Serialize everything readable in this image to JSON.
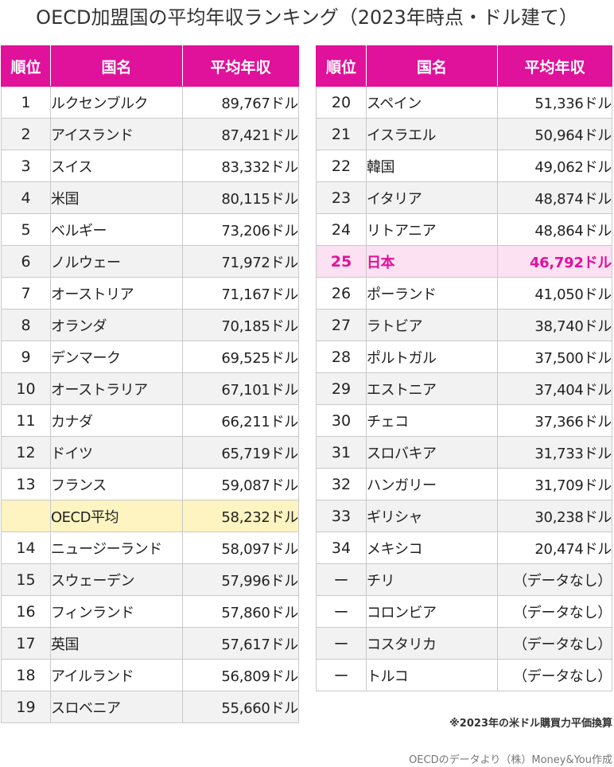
{
  "title": "OECD加盟国の平均年収ランキング（2023年時点・ドル建て）",
  "headers": {
    "rank": "順位",
    "country": "国名",
    "salary": "平均年収"
  },
  "left_rows": [
    {
      "rank": "1",
      "country": "ルクセンブルク",
      "salary": "89,767ドル"
    },
    {
      "rank": "2",
      "country": "アイスランド",
      "salary": "87,421ドル"
    },
    {
      "rank": "3",
      "country": "スイス",
      "salary": "83,332ドル"
    },
    {
      "rank": "4",
      "country": "米国",
      "salary": "80,115ドル"
    },
    {
      "rank": "5",
      "country": "ベルギー",
      "salary": "73,206ドル"
    },
    {
      "rank": "6",
      "country": "ノルウェー",
      "salary": "71,972ドル"
    },
    {
      "rank": "7",
      "country": "オーストリア",
      "salary": "71,167ドル"
    },
    {
      "rank": "8",
      "country": "オランダ",
      "salary": "70,185ドル"
    },
    {
      "rank": "9",
      "country": "デンマーク",
      "salary": "69,525ドル"
    },
    {
      "rank": "10",
      "country": "オーストラリア",
      "salary": "67,101ドル"
    },
    {
      "rank": "11",
      "country": "カナダ",
      "salary": "66,211ドル"
    },
    {
      "rank": "12",
      "country": "ドイツ",
      "salary": "65,719ドル"
    },
    {
      "rank": "13",
      "country": "フランス",
      "salary": "59,087ドル"
    },
    {
      "rank": "",
      "country": "OECD平均",
      "salary": "58,232ドル"
    },
    {
      "rank": "14",
      "country": "ニュージーランド",
      "salary": "58,097ドル"
    },
    {
      "rank": "15",
      "country": "スウェーデン",
      "salary": "57,996ドル"
    },
    {
      "rank": "16",
      "country": "フィンランド",
      "salary": "57,860ドル"
    },
    {
      "rank": "17",
      "country": "英国",
      "salary": "57,617ドル"
    },
    {
      "rank": "18",
      "country": "アイルランド",
      "salary": "56,809ドル"
    },
    {
      "rank": "19",
      "country": "スロベニア",
      "salary": "55,660ドル"
    }
  ],
  "right_rows": [
    {
      "rank": "20",
      "country": "スペイン",
      "salary": "51,336ドル"
    },
    {
      "rank": "21",
      "country": "イスラエル",
      "salary": "50,964ドル"
    },
    {
      "rank": "22",
      "country": "韓国",
      "salary": "49,062ドル"
    },
    {
      "rank": "23",
      "country": "イタリア",
      "salary": "48,874ドル"
    },
    {
      "rank": "24",
      "country": "リトアニア",
      "salary": "48,864ドル"
    },
    {
      "rank": "25",
      "country": "日本",
      "salary": "46,792ドル"
    },
    {
      "rank": "26",
      "country": "ポーランド",
      "salary": "41,050ドル"
    },
    {
      "rank": "27",
      "country": "ラトビア",
      "salary": "38,740ドル"
    },
    {
      "rank": "28",
      "country": "ポルトガル",
      "salary": "37,500ドル"
    },
    {
      "rank": "29",
      "country": "エストニア",
      "salary": "37,404ドル"
    },
    {
      "rank": "30",
      "country": "チェコ",
      "salary": "37,366ドル"
    },
    {
      "rank": "31",
      "country": "スロバキア",
      "salary": "31,733ドル"
    },
    {
      "rank": "32",
      "country": "ハンガリー",
      "salary": "31,709ドル"
    },
    {
      "rank": "33",
      "country": "ギリシャ",
      "salary": "30,238ドル"
    },
    {
      "rank": "34",
      "country": "メキシコ",
      "salary": "20,474ドル"
    },
    {
      "rank": "ー",
      "country": "チリ",
      "salary": "（データなし）"
    },
    {
      "rank": "ー",
      "country": "コロンビア",
      "salary": "（データなし）"
    },
    {
      "rank": "ー",
      "country": "コスタリカ",
      "salary": "（データなし）"
    },
    {
      "rank": "ー",
      "country": "トルコ",
      "salary": "（データなし）"
    }
  ],
  "note": "※2023年の米ドル購買力平価換算",
  "credit": "OECDのデータより（株）Money&You作成",
  "colors": {
    "header_bg": "#e0119a",
    "japan_row_bg": "#fbe1f1",
    "japan_text": "#e0119a",
    "oecd_avg_bg": "#fdf4c2",
    "zebra_bg": "#f2f2f2"
  }
}
